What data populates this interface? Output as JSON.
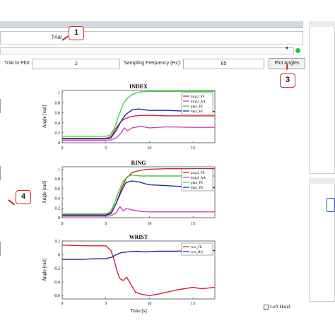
{
  "header": {
    "trial_label": "Trial",
    "trial_to_plot_label": "Trial to Plot:",
    "trial_to_plot_value": "2",
    "sampling_frequency_label": "Sampling Frequency (Hz):",
    "sampling_frequency_value": "65",
    "plot_button": "Plot Angles"
  },
  "annotations": [
    "1",
    "3",
    "4"
  ],
  "left_hand_label": "Left Hand",
  "colors": {
    "annotation": "#c62828",
    "status_led": "#2fc437",
    "ff": "#d62035",
    "aa": "#d23fc0",
    "fe_green": "#38d43a",
    "fe_blue": "#1c2f9e"
  },
  "chart_data": [
    {
      "type": "line",
      "title": "INDEX",
      "ylabel": "Angle [rad]",
      "xlim": [
        0,
        17.5
      ],
      "ylim": [
        0,
        1.05
      ],
      "xticks": [
        "0",
        "5",
        "10",
        "15"
      ],
      "yticks": [
        "0",
        "0.2",
        "0.4",
        "0.6",
        "0.8",
        "1"
      ],
      "series": [
        {
          "name": "mcp2_FF",
          "color": "#d62035",
          "x": [
            0,
            5,
            5.6,
            6.2,
            6.8,
            7.3,
            8,
            9,
            10,
            12,
            15,
            17.5
          ],
          "y": [
            0.09,
            0.09,
            0.12,
            0.3,
            0.44,
            0.49,
            0.53,
            0.55,
            0.55,
            0.54,
            0.54,
            0.54
          ]
        },
        {
          "name": "mcp2_AA",
          "color": "#d23fc0",
          "x": [
            0,
            5,
            5.6,
            6.2,
            6.8,
            7.1,
            7.5,
            8,
            9,
            10,
            12,
            15,
            17.5
          ],
          "y": [
            0.05,
            0.05,
            0.06,
            0.1,
            0.2,
            0.3,
            0.24,
            0.3,
            0.33,
            0.3,
            0.32,
            0.31,
            0.31
          ]
        },
        {
          "name": "pip2_FE",
          "color": "#38d43a",
          "x": [
            0,
            5,
            5.5,
            6,
            6.5,
            7,
            7.5,
            8,
            8.5,
            9,
            10,
            12,
            15,
            17.5
          ],
          "y": [
            0.13,
            0.13,
            0.15,
            0.3,
            0.55,
            0.78,
            0.9,
            0.96,
            1.0,
            1.02,
            1.03,
            1.03,
            1.03,
            1.03
          ]
        },
        {
          "name": "dip2_FE",
          "color": "#1c2f9e",
          "x": [
            0,
            5,
            5.6,
            6.2,
            6.8,
            7.3,
            8,
            8.8,
            9.5,
            10,
            12,
            15,
            17.5
          ],
          "y": [
            0.08,
            0.08,
            0.1,
            0.25,
            0.45,
            0.57,
            0.66,
            0.68,
            0.66,
            0.65,
            0.65,
            0.63,
            0.63
          ]
        }
      ]
    },
    {
      "type": "line",
      "title": "RING",
      "ylabel": "Angle [rad]",
      "xlim": [
        0,
        17.5
      ],
      "ylim": [
        0,
        1.05
      ],
      "xticks": [
        "0",
        "5",
        "10",
        "15"
      ],
      "yticks": [
        "0",
        "0.2",
        "0.4",
        "0.6",
        "0.8",
        "1"
      ],
      "series": [
        {
          "name": "mcp4_FE",
          "color": "#d62035",
          "x": [
            0,
            5,
            5.6,
            6.2,
            6.8,
            7.3,
            8,
            9,
            10,
            12,
            15,
            17.5
          ],
          "y": [
            0.06,
            0.06,
            0.1,
            0.3,
            0.6,
            0.8,
            0.93,
            0.98,
            1.0,
            1.01,
            1.01,
            1.01
          ]
        },
        {
          "name": "mcp4_AA",
          "color": "#d23fc0",
          "x": [
            0,
            5,
            5.6,
            6.2,
            6.6,
            7,
            7.4,
            8,
            9,
            10,
            12,
            15,
            17.5
          ],
          "y": [
            0.03,
            0.03,
            0.04,
            0.1,
            0.23,
            0.14,
            0.19,
            0.16,
            0.13,
            0.12,
            0.12,
            0.12,
            0.12
          ]
        },
        {
          "name": "pip4_FE",
          "color": "#38d43a",
          "x": [
            0,
            5,
            5.5,
            6,
            6.5,
            7,
            7.5,
            8,
            8.5,
            9,
            10,
            12,
            15,
            17.5
          ],
          "y": [
            0.08,
            0.08,
            0.12,
            0.3,
            0.55,
            0.75,
            0.85,
            0.88,
            0.87,
            0.86,
            0.86,
            0.86,
            0.86,
            0.86
          ]
        },
        {
          "name": "dip4_FE",
          "color": "#1c2f9e",
          "x": [
            0,
            5,
            5.6,
            6.2,
            6.8,
            7.3,
            8,
            8.8,
            9.5,
            10,
            12,
            15,
            17.5
          ],
          "y": [
            0.05,
            0.05,
            0.08,
            0.3,
            0.55,
            0.72,
            0.76,
            0.74,
            0.7,
            0.68,
            0.66,
            0.63,
            0.62
          ]
        }
      ]
    },
    {
      "type": "line",
      "title": "WRIST",
      "xlabel": "Time [s]",
      "ylabel": "Angle [rad]",
      "xlim": [
        0,
        17.5
      ],
      "ylim": [
        -0.65,
        0.2
      ],
      "xticks": [
        "0",
        "5",
        "10",
        "15"
      ],
      "yticks": [
        "0.2",
        "0",
        "-0.2",
        "-0.4",
        "-0.6"
      ],
      "series": [
        {
          "name": "wrx_FE",
          "color": "#d62035",
          "x": [
            0,
            3,
            5,
            5.6,
            6,
            6.3,
            6.6,
            7,
            7.4,
            7.8,
            8.4,
            9,
            10,
            11,
            12,
            13,
            14,
            15,
            16,
            17.5
          ],
          "y": [
            0.14,
            0.13,
            0.13,
            0.06,
            -0.1,
            -0.25,
            -0.35,
            -0.38,
            -0.33,
            -0.42,
            -0.55,
            -0.58,
            -0.6,
            -0.58,
            -0.55,
            -0.52,
            -0.5,
            -0.48,
            -0.5,
            -0.48
          ]
        },
        {
          "name": "wrx_RU",
          "color": "#1c2f9e",
          "x": [
            0,
            2,
            4,
            5,
            5.6,
            6.2,
            6.8,
            7.5,
            8.5,
            9.5,
            11,
            13,
            15,
            17.5
          ],
          "y": [
            -0.07,
            -0.07,
            -0.06,
            -0.06,
            -0.04,
            0.0,
            0.03,
            0.04,
            0.05,
            0.04,
            0.05,
            0.05,
            0.06,
            0.06
          ]
        }
      ]
    }
  ]
}
